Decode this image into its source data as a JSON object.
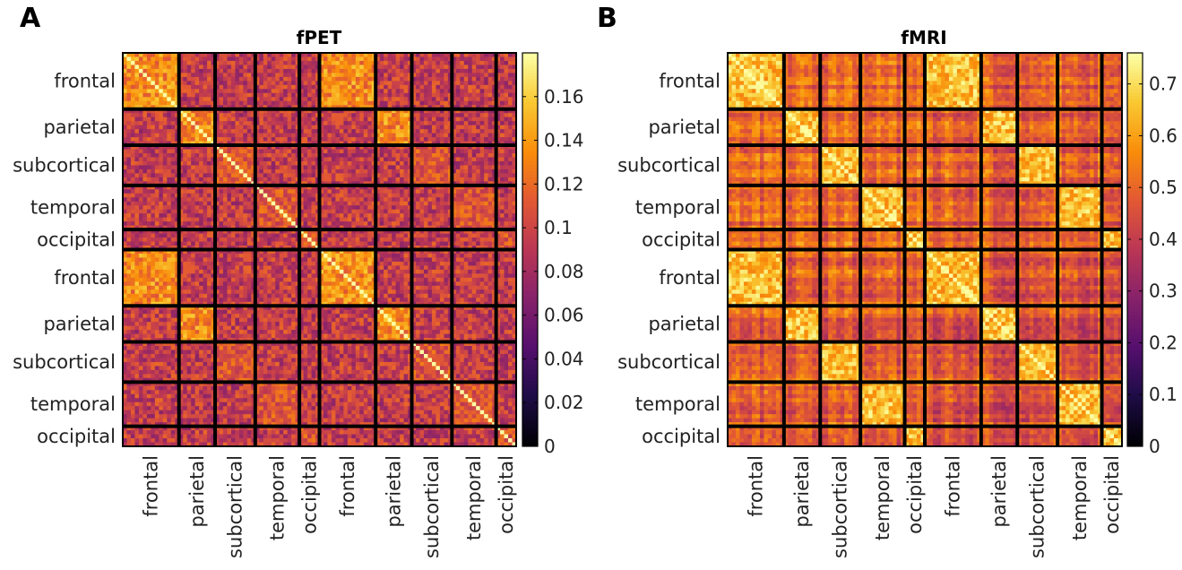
{
  "panels": [
    {
      "letter": "A",
      "title": "fPET"
    },
    {
      "letter": "B",
      "title": "fMRI"
    }
  ],
  "chart_data": [
    {
      "type": "heatmap",
      "title": "fPET",
      "panel_label": "A",
      "row_labels": [
        "frontal",
        "parietal",
        "subcortical",
        "temporal",
        "occipital",
        "frontal",
        "parietal",
        "subcortical",
        "temporal",
        "occipital"
      ],
      "col_labels": [
        "frontal",
        "parietal",
        "subcortical",
        "temporal",
        "occipital",
        "frontal",
        "parietal",
        "subcortical",
        "temporal",
        "occipital"
      ],
      "block_sizes": [
        14,
        9,
        10,
        11,
        5,
        14,
        9,
        10,
        11,
        5
      ],
      "colormap": "inferno",
      "clim": [
        0,
        0.18
      ],
      "colorbar_ticks": [
        0,
        0.02,
        0.04,
        0.06,
        0.08,
        0.1,
        0.12,
        0.14,
        0.16
      ],
      "colorbar_tick_labels": [
        "0",
        "0.02",
        "0.04",
        "0.06",
        "0.08",
        "0.1",
        "0.12",
        "0.14",
        "0.16"
      ],
      "diagonal_value": 0.18,
      "typical_value_within_network": 0.13,
      "typical_value_between_network": 0.09
    },
    {
      "type": "heatmap",
      "title": "fMRI",
      "panel_label": "B",
      "row_labels": [
        "frontal",
        "parietal",
        "subcortical",
        "temporal",
        "occipital",
        "frontal",
        "parietal",
        "subcortical",
        "temporal",
        "occipital"
      ],
      "col_labels": [
        "frontal",
        "parietal",
        "subcortical",
        "temporal",
        "occipital",
        "frontal",
        "parietal",
        "subcortical",
        "temporal",
        "occipital"
      ],
      "block_sizes": [
        14,
        9,
        10,
        11,
        5,
        14,
        9,
        10,
        11,
        5
      ],
      "colormap": "inferno",
      "clim": [
        0,
        0.76
      ],
      "colorbar_ticks": [
        0,
        0.1,
        0.2,
        0.3,
        0.4,
        0.5,
        0.6,
        0.7
      ],
      "colorbar_tick_labels": [
        "0",
        "0.1",
        "0.2",
        "0.3",
        "0.4",
        "0.5",
        "0.6",
        "0.7"
      ],
      "diagonal_value": 0.76,
      "typical_value_within_network": 0.6,
      "typical_value_between_network": 0.45
    }
  ]
}
